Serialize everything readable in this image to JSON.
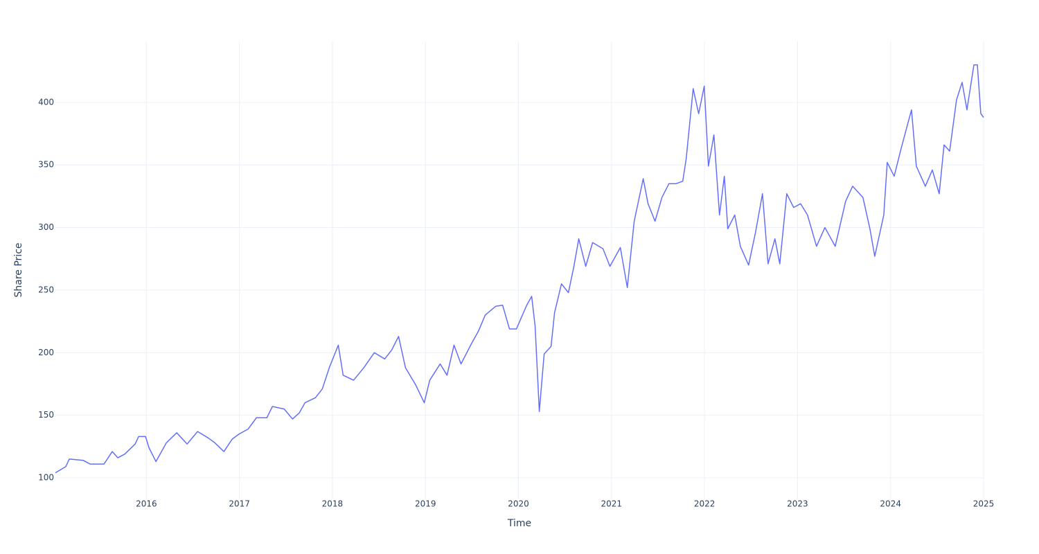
{
  "chart_data": {
    "type": "line",
    "x_label": "Time",
    "y_label": "Share Price",
    "x": [
      2015.022,
      2015.134,
      2015.171,
      2015.32,
      2015.395,
      2015.544,
      2015.633,
      2015.693,
      2015.768,
      2015.879,
      2015.917,
      2015.991,
      2016.028,
      2016.103,
      2016.215,
      2016.326,
      2016.438,
      2016.55,
      2016.662,
      2016.736,
      2016.833,
      2016.923,
      2016.997,
      2017.094,
      2017.183,
      2017.295,
      2017.355,
      2017.481,
      2017.571,
      2017.645,
      2017.705,
      2017.817,
      2017.891,
      2017.966,
      2018.063,
      2018.115,
      2018.227,
      2018.338,
      2018.45,
      2018.562,
      2018.636,
      2018.711,
      2018.785,
      2018.897,
      2018.987,
      2019.046,
      2019.158,
      2019.232,
      2019.307,
      2019.382,
      2019.493,
      2019.568,
      2019.642,
      2019.754,
      2019.829,
      2019.903,
      2019.978,
      2020.089,
      2020.142,
      2020.179,
      2020.224,
      2020.276,
      2020.35,
      2020.388,
      2020.462,
      2020.537,
      2020.596,
      2020.648,
      2020.723,
      2020.797,
      2020.909,
      2020.983,
      2021.095,
      2021.17,
      2021.244,
      2021.341,
      2021.393,
      2021.468,
      2021.542,
      2021.617,
      2021.692,
      2021.766,
      2021.803,
      2021.878,
      2021.937,
      2021.997,
      2022.042,
      2022.101,
      2022.161,
      2022.213,
      2022.25,
      2022.325,
      2022.385,
      2022.474,
      2022.548,
      2022.623,
      2022.683,
      2022.757,
      2022.809,
      2022.884,
      2022.958,
      2023.033,
      2023.107,
      2023.204,
      2023.294,
      2023.405,
      2023.517,
      2023.592,
      2023.703,
      2023.778,
      2023.83,
      2023.927,
      2023.964,
      2024.039,
      2024.113,
      2024.225,
      2024.277,
      2024.374,
      2024.449,
      2024.523,
      2024.575,
      2024.635,
      2024.709,
      2024.769,
      2024.821,
      2024.896,
      2024.933,
      2024.97,
      2025.0
    ],
    "values": [
      104,
      109,
      115,
      114,
      111,
      111,
      121,
      116,
      119,
      127,
      133,
      133,
      124,
      113,
      128,
      136,
      127,
      137,
      132,
      128,
      121,
      131,
      135,
      139,
      148,
      148,
      157,
      155,
      147,
      152,
      160,
      164,
      171,
      188,
      206,
      182,
      178,
      188,
      200,
      195,
      202,
      213,
      188,
      174,
      160,
      178,
      191,
      182,
      206,
      191,
      207,
      217,
      230,
      237,
      238,
      219,
      219,
      238,
      245,
      221,
      153,
      199,
      205,
      232,
      255,
      248,
      269,
      291,
      269,
      288,
      283,
      269,
      284,
      252,
      305,
      339,
      319,
      305,
      324,
      335,
      335,
      337,
      355,
      411,
      391,
      413,
      349,
      374,
      310,
      341,
      299,
      310,
      285,
      270,
      296,
      327,
      271,
      291,
      271,
      327,
      316,
      319,
      310,
      285,
      300,
      285,
      321,
      333,
      324,
      299,
      277,
      310,
      352,
      341,
      363,
      394,
      349,
      333,
      346,
      327,
      366,
      361,
      402,
      416,
      394,
      430,
      430,
      391,
      388
    ],
    "line_color": "#636efa",
    "xlim": [
      2015.022,
      2025.0
    ],
    "xticks": [
      2016,
      2017,
      2018,
      2019,
      2020,
      2021,
      2022,
      2023,
      2024,
      2025
    ],
    "ylim": [
      83.4,
      448.6
    ],
    "yticks": [
      100,
      150,
      200,
      250,
      300,
      350,
      400
    ],
    "grid": true
  }
}
